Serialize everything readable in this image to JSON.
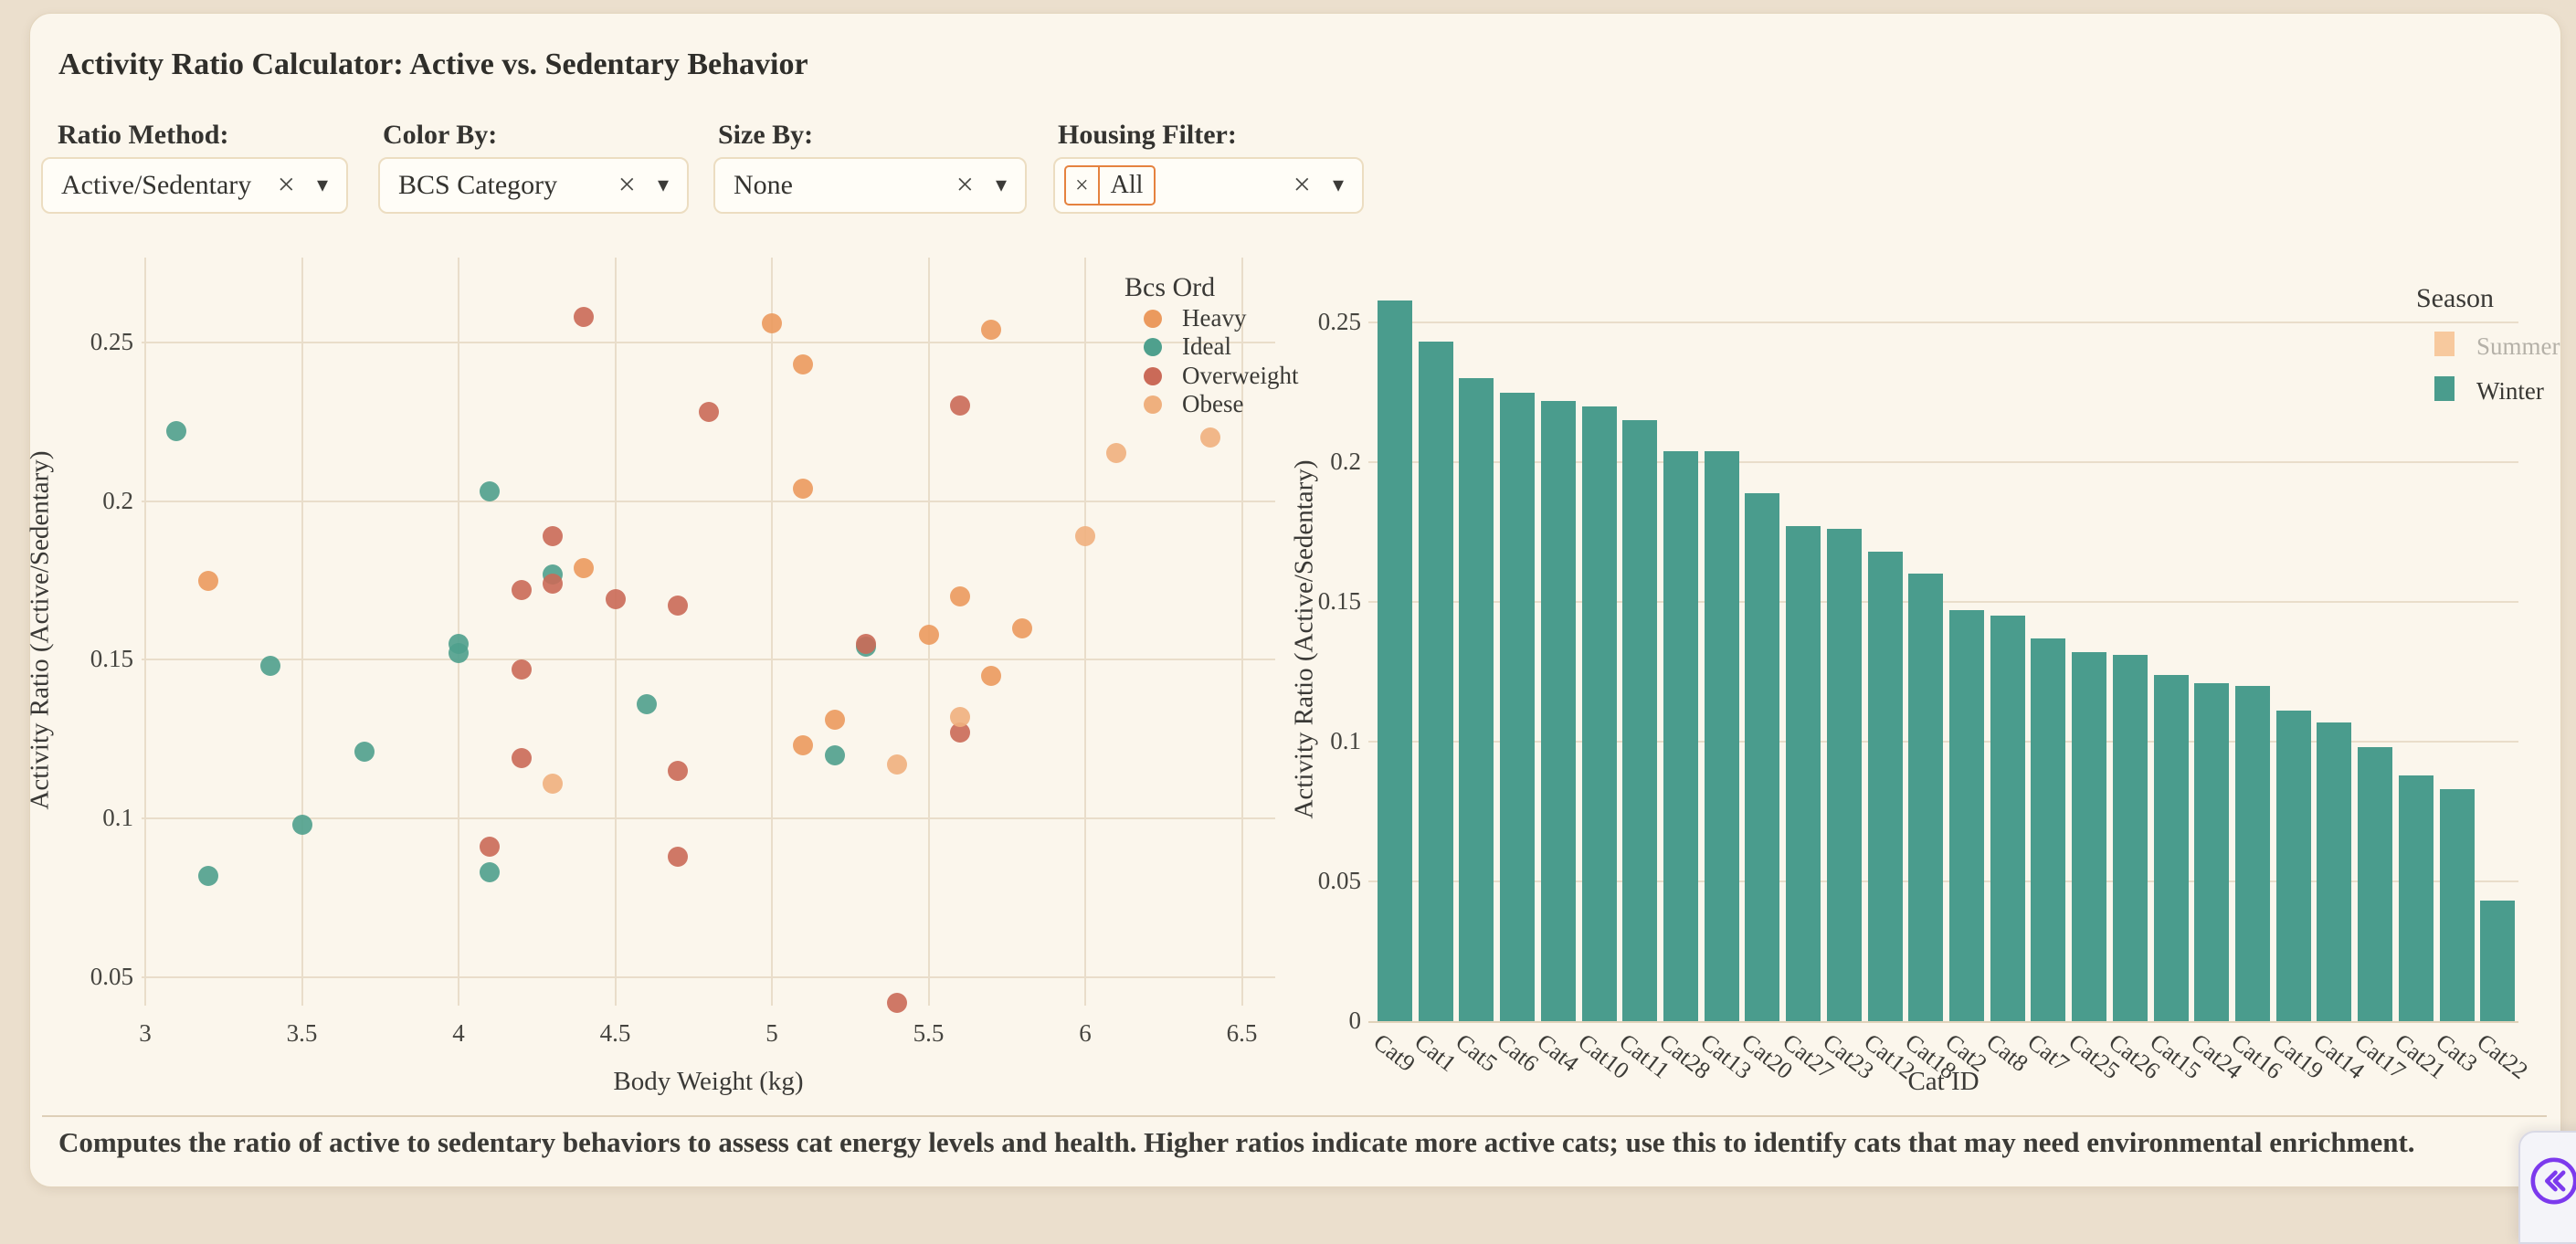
{
  "header": {
    "title": "Activity Ratio Calculator: Active vs. Sedentary Behavior"
  },
  "icons": {
    "clear": "×",
    "caret": "▾",
    "chip_remove": "×"
  },
  "controls": [
    {
      "id": "ratio-method",
      "label": "Ratio Method:",
      "value": "Active/Sedentary"
    },
    {
      "id": "color-by",
      "label": "Color By:",
      "value": "BCS Category"
    },
    {
      "id": "size-by",
      "label": "Size By:",
      "value": "None"
    },
    {
      "id": "housing-filter",
      "label": "Housing Filter:",
      "chip": {
        "remove_icon": "×",
        "text": "All"
      }
    }
  ],
  "chart_data": [
    {
      "type": "scatter",
      "xlabel": "Body Weight (kg)",
      "ylabel": "Activity Ratio (Active/Sedentary)",
      "xlim": [
        2.95,
        6.6
      ],
      "ylim": [
        0.03,
        0.27
      ],
      "x_ticks": [
        3,
        3.5,
        4,
        4.5,
        5,
        5.5,
        6,
        6.5
      ],
      "y_ticks": [
        0.05,
        0.1,
        0.15,
        0.2,
        0.25
      ],
      "grid": true,
      "legend_title": "Bcs Ord",
      "legend_position": "top-right",
      "series": [
        {
          "name": "Heavy",
          "color": "#eb9a5e",
          "points": [
            [
              3.2,
              0.175
            ],
            [
              4.4,
              0.179
            ],
            [
              5.0,
              0.256
            ],
            [
              5.1,
              0.243
            ],
            [
              5.1,
              0.204
            ],
            [
              5.1,
              0.123
            ],
            [
              5.2,
              0.131
            ],
            [
              5.5,
              0.158
            ],
            [
              5.6,
              0.17
            ],
            [
              5.7,
              0.254
            ],
            [
              5.7,
              0.145
            ],
            [
              5.8,
              0.16
            ]
          ]
        },
        {
          "name": "Ideal",
          "color": "#4fa08d",
          "points": [
            [
              3.1,
              0.222
            ],
            [
              3.2,
              0.082
            ],
            [
              3.4,
              0.148
            ],
            [
              3.5,
              0.098
            ],
            [
              3.7,
              0.121
            ],
            [
              4.0,
              0.155
            ],
            [
              4.0,
              0.152
            ],
            [
              4.1,
              0.203
            ],
            [
              4.1,
              0.083
            ],
            [
              4.3,
              0.177
            ],
            [
              4.6,
              0.136
            ],
            [
              5.2,
              0.12
            ],
            [
              5.3,
              0.154
            ]
          ]
        },
        {
          "name": "Overweight",
          "color": "#ca6a58",
          "points": [
            [
              4.1,
              0.091
            ],
            [
              4.2,
              0.172
            ],
            [
              4.2,
              0.147
            ],
            [
              4.2,
              0.119
            ],
            [
              4.3,
              0.189
            ],
            [
              4.3,
              0.174
            ],
            [
              4.4,
              0.258
            ],
            [
              4.5,
              0.169
            ],
            [
              4.7,
              0.167
            ],
            [
              4.7,
              0.115
            ],
            [
              4.7,
              0.088
            ],
            [
              4.8,
              0.228
            ],
            [
              5.3,
              0.155
            ],
            [
              5.4,
              0.042
            ],
            [
              5.6,
              0.23
            ],
            [
              5.6,
              0.127
            ]
          ]
        },
        {
          "name": "Obese",
          "color": "#efb07e",
          "points": [
            [
              4.3,
              0.111
            ],
            [
              5.4,
              0.117
            ],
            [
              5.6,
              0.132
            ],
            [
              6.0,
              0.189
            ],
            [
              6.1,
              0.215
            ],
            [
              6.4,
              0.22
            ]
          ]
        }
      ]
    },
    {
      "type": "bar",
      "xlabel": "Cat ID",
      "ylabel": "Activity Ratio (Active/Sedentary)",
      "ylim": [
        0,
        0.27
      ],
      "y_ticks": [
        0,
        0.05,
        0.1,
        0.15,
        0.2,
        0.25
      ],
      "grid": true,
      "legend_title": "Season",
      "legend_position": "top-right",
      "legend": [
        {
          "name": "Summer",
          "color": "#f7c99e",
          "active": false
        },
        {
          "name": "Winter",
          "color": "#4a9c8d",
          "active": true
        }
      ],
      "bar_color": "#4a9c8d",
      "categories": [
        "Cat9",
        "Cat1",
        "Cat5",
        "Cat6",
        "Cat4",
        "Cat10",
        "Cat11",
        "Cat28",
        "Cat13",
        "Cat20",
        "Cat27",
        "Cat23",
        "Cat12",
        "Cat18",
        "Cat2",
        "Cat8",
        "Cat7",
        "Cat25",
        "Cat26",
        "Cat15",
        "Cat24",
        "Cat16",
        "Cat19",
        "Cat14",
        "Cat17",
        "Cat21",
        "Cat3",
        "Cat22"
      ],
      "values": [
        0.258,
        0.243,
        0.23,
        0.225,
        0.222,
        0.22,
        0.215,
        0.204,
        0.204,
        0.189,
        0.177,
        0.176,
        0.168,
        0.16,
        0.147,
        0.145,
        0.137,
        0.132,
        0.131,
        0.124,
        0.121,
        0.12,
        0.111,
        0.107,
        0.098,
        0.088,
        0.083,
        0.043
      ]
    }
  ],
  "footer": {
    "description": "Computes the ratio of active to sedentary behaviors to assess cat energy levels and health. Higher ratios indicate more active cats; use this to identify cats that may need environmental enrichment."
  },
  "corner_button": {
    "icon": "double-chevron-left"
  },
  "colors": {
    "page_bg": "#ebdfcd",
    "card_bg": "#fbf6ec",
    "grid": "#e9ddca",
    "heavy": "#eb9a5e",
    "ideal": "#4fa08d",
    "overweight": "#ca6a58",
    "obese": "#efb07e",
    "bar": "#4a9c8d",
    "summer": "#f7c99e",
    "winter": "#4a9c8d",
    "chip_border": "#e5823f",
    "accent_purple": "#7c3aed",
    "inactive_label": "#b5b1a8"
  }
}
